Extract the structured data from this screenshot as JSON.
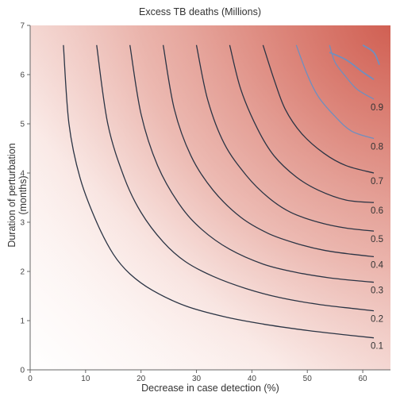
{
  "chart_data": {
    "type": "heatmap",
    "subtype": "contour",
    "title": "Excess TB deaths (Millions)",
    "xlabel": "Decrease in case detection (%)",
    "ylabel": "Duration of perturbation (months)",
    "xlim": [
      0,
      65
    ],
    "ylim": [
      0,
      7
    ],
    "xticks": [
      0,
      10,
      20,
      30,
      40,
      50,
      60
    ],
    "yticks": [
      0,
      1,
      2,
      3,
      4,
      5,
      6,
      7
    ],
    "colormap": {
      "low": "#ffffff",
      "high": "#d4695c"
    },
    "contour_color": "#2b3444",
    "contour_color_high": "#6f8fbf",
    "contours": [
      {
        "label": "0.1",
        "x": [
          6,
          7,
          9,
          12,
          15,
          18,
          22,
          28,
          35,
          42,
          50,
          57,
          62
        ],
        "y": [
          6.6,
          5.0,
          3.9,
          3.0,
          2.35,
          1.95,
          1.62,
          1.3,
          1.08,
          0.93,
          0.8,
          0.71,
          0.65
        ]
      },
      {
        "label": "0.2",
        "x": [
          12,
          14,
          17,
          20,
          24,
          28,
          33,
          39,
          45,
          52,
          58,
          62
        ],
        "y": [
          6.6,
          5.0,
          3.9,
          3.2,
          2.6,
          2.2,
          1.9,
          1.65,
          1.47,
          1.33,
          1.25,
          1.2
        ]
      },
      {
        "label": "0.3",
        "x": [
          18,
          20,
          23,
          27,
          31,
          36,
          42,
          48,
          54,
          60,
          62
        ],
        "y": [
          6.6,
          5.2,
          4.15,
          3.35,
          2.85,
          2.45,
          2.15,
          1.98,
          1.87,
          1.8,
          1.78
        ]
      },
      {
        "label": "0.4",
        "x": [
          24,
          26,
          29,
          33,
          38,
          43,
          48,
          53,
          58,
          62
        ],
        "y": [
          6.6,
          5.3,
          4.35,
          3.65,
          3.1,
          2.77,
          2.57,
          2.43,
          2.35,
          2.3
        ]
      },
      {
        "label": "0.5",
        "x": [
          30,
          32,
          35,
          39,
          43,
          47,
          52,
          57,
          62
        ],
        "y": [
          6.6,
          5.5,
          4.6,
          3.95,
          3.5,
          3.2,
          3.0,
          2.88,
          2.82
        ]
      },
      {
        "label": "0.6",
        "x": [
          36,
          38,
          41,
          44,
          48,
          52,
          57,
          62
        ],
        "y": [
          6.6,
          5.7,
          4.9,
          4.35,
          3.92,
          3.65,
          3.45,
          3.4
        ]
      },
      {
        "label": "0.7",
        "x": [
          42,
          44,
          46,
          49,
          53,
          57,
          62
        ],
        "y": [
          6.6,
          5.9,
          5.3,
          4.8,
          4.4,
          4.15,
          4.0
        ]
      },
      {
        "label": "0.8",
        "x": [
          48,
          50,
          52,
          55,
          58,
          62
        ],
        "y": [
          6.6,
          6.0,
          5.55,
          5.15,
          4.85,
          4.7
        ]
      },
      {
        "label": "0.9",
        "x": [
          54,
          55,
          57,
          59,
          62
        ],
        "y": [
          6.6,
          6.25,
          5.95,
          5.7,
          5.5
        ]
      },
      {
        "label": "",
        "x": [
          54,
          57,
          60,
          62
        ],
        "y": [
          6.45,
          6.3,
          6.05,
          5.9
        ]
      },
      {
        "label": "",
        "x": [
          60,
          62,
          63
        ],
        "y": [
          6.6,
          6.45,
          6.2
        ]
      }
    ]
  }
}
